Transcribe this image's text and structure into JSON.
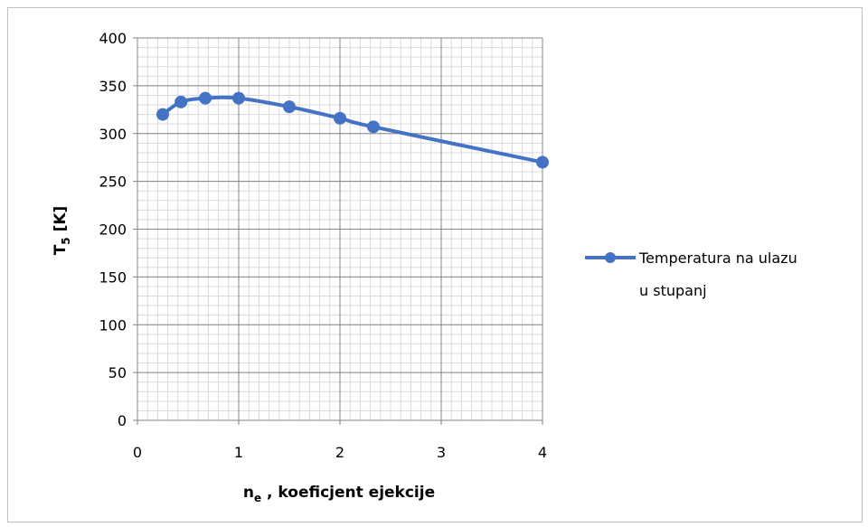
{
  "chart_data": {
    "type": "line",
    "title": "",
    "xlabel": {
      "main": "n",
      "subscript": "e",
      "rest": " , koeficjent  ejekcije"
    },
    "ylabel": {
      "main": "T",
      "subscript": "5",
      "rest": " [K]"
    },
    "xlim": [
      0,
      4
    ],
    "ylim": [
      0,
      400
    ],
    "x_ticks": [
      "0",
      "1",
      "2",
      "3",
      "4"
    ],
    "y_ticks": [
      "0",
      "50",
      "100",
      "150",
      "200",
      "250",
      "300",
      "350",
      "400"
    ],
    "grid": "major and minor",
    "legend_position": "right",
    "series": [
      {
        "name": "Temperatura na ulazu u stupanj",
        "name_lines": [
          "Temperatura na ulazu",
          "u stupanj"
        ],
        "color": "#4472c4",
        "x": [
          0.25,
          0.43,
          0.67,
          1.0,
          1.5,
          2.0,
          2.33,
          4.0
        ],
        "y": [
          320,
          333,
          337,
          337,
          328,
          316,
          307,
          270
        ]
      }
    ]
  }
}
